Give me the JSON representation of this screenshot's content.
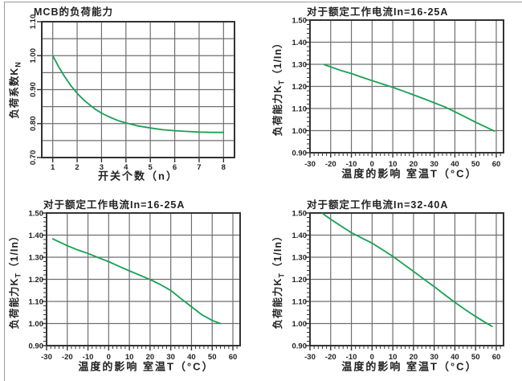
{
  "page": {
    "background": "#ffffff",
    "description_language": "zh-CN"
  },
  "colors": {
    "curve": "#17a154",
    "grid": "#6f6f6f",
    "frame": "#333333",
    "text": "#222222",
    "page_border": "#9a9a9a"
  },
  "chart_data": [
    {
      "id": "mcb-load-capacity",
      "type": "line",
      "title": "MCB的负荷能力",
      "xlabel": "开关个数（n）",
      "ylabel": "负荷系数K",
      "ylabel_sub": "N",
      "ylabel_suffix": "",
      "legend": "none",
      "grid": "on",
      "xlim": [
        0.55,
        8.45
      ],
      "ylim": [
        0.7,
        1.1
      ],
      "x_ticks": [
        1,
        2,
        3,
        4,
        5,
        6,
        7,
        8
      ],
      "x_tick_labels": [
        "1",
        "2",
        "3",
        "4",
        "5",
        "6",
        "7",
        "8"
      ],
      "y_ticks": [
        0.7,
        0.8,
        0.9,
        1.0,
        1.1
      ],
      "y_tick_labels": [
        "0.70",
        "0.80",
        "0.90",
        "1.00",
        "1.10"
      ],
      "y_grid": [
        0.7,
        0.75,
        0.8,
        0.85,
        0.9,
        0.95,
        1.0,
        1.05,
        1.1
      ],
      "x_grid": [
        1,
        2,
        3,
        4,
        5,
        6,
        7,
        8
      ],
      "y_tick_rotated": true,
      "points": [
        [
          1,
          1.0
        ],
        [
          1.25,
          0.966
        ],
        [
          1.5,
          0.937
        ],
        [
          1.75,
          0.911
        ],
        [
          2,
          0.889
        ],
        [
          2.25,
          0.871
        ],
        [
          2.5,
          0.856
        ],
        [
          2.75,
          0.842
        ],
        [
          3,
          0.831
        ],
        [
          3.25,
          0.822
        ],
        [
          3.5,
          0.814
        ],
        [
          3.75,
          0.807
        ],
        [
          4,
          0.802
        ],
        [
          4.5,
          0.793
        ],
        [
          5,
          0.787
        ],
        [
          5.5,
          0.782
        ],
        [
          6,
          0.779
        ],
        [
          6.5,
          0.777
        ],
        [
          7,
          0.775
        ],
        [
          7.5,
          0.774
        ],
        [
          8,
          0.774
        ]
      ]
    },
    {
      "id": "temp-derating-16-25A-top",
      "type": "line",
      "title": "对于额定工作电流In=16-25A",
      "xlabel": "温度的影响 室温T（°C）",
      "ylabel": "负荷能力K",
      "ylabel_sub": "T",
      "ylabel_suffix": "（1/In）",
      "legend": "none",
      "grid": "on",
      "xlim": [
        -30,
        63.5
      ],
      "ylim": [
        0.9,
        1.5
      ],
      "x_ticks": [
        -30,
        -20,
        -10,
        0,
        10,
        20,
        30,
        40,
        50,
        60
      ],
      "x_tick_labels": [
        "-30",
        "-20",
        "-10",
        "0",
        "10",
        "20",
        "30",
        "40",
        "50",
        "60"
      ],
      "y_ticks": [
        0.9,
        1.0,
        1.1,
        1.2,
        1.3,
        1.4,
        1.5
      ],
      "y_tick_labels": [
        "0.90",
        "1.00",
        "1.10",
        "1.20",
        "1.30",
        "1.40",
        "1.50"
      ],
      "y_grid": [
        0.9,
        1.0,
        1.1,
        1.2,
        1.3,
        1.4,
        1.5
      ],
      "x_grid": [
        -30,
        -20,
        -10,
        0,
        10,
        20,
        30,
        40,
        50,
        60
      ],
      "x_minor_step": 2,
      "y_minor_step": 0.02,
      "y_tick_rotated": false,
      "points": [
        [
          -23,
          1.298
        ],
        [
          -15,
          1.272
        ],
        [
          -10,
          1.258
        ],
        [
          -5,
          1.242
        ],
        [
          0,
          1.226
        ],
        [
          5,
          1.211
        ],
        [
          10,
          1.196
        ],
        [
          15,
          1.179
        ],
        [
          20,
          1.162
        ],
        [
          25,
          1.144
        ],
        [
          30,
          1.126
        ],
        [
          35,
          1.108
        ],
        [
          40,
          1.085
        ],
        [
          45,
          1.062
        ],
        [
          50,
          1.038
        ],
        [
          55,
          1.016
        ],
        [
          59,
          0.998
        ]
      ]
    },
    {
      "id": "temp-derating-16-25A-bottom",
      "type": "line",
      "title": "对于额定工作电流In=16-25A",
      "xlabel": "温度的影响 室温T（°C）",
      "ylabel": "负荷能力K",
      "ylabel_sub": "T",
      "ylabel_suffix": "（1/In）",
      "legend": "none",
      "grid": "on",
      "xlim": [
        -30,
        63.5
      ],
      "ylim": [
        0.9,
        1.5
      ],
      "x_ticks": [
        -30,
        -20,
        -10,
        0,
        10,
        20,
        30,
        40,
        50,
        60
      ],
      "x_tick_labels": [
        "-30",
        "-20",
        "-10",
        "0",
        "10",
        "20",
        "30",
        "40",
        "50",
        "60"
      ],
      "y_ticks": [
        0.9,
        1.0,
        1.1,
        1.2,
        1.3,
        1.4,
        1.5
      ],
      "y_tick_labels": [
        "0.90",
        "1.00",
        "1.10",
        "1.20",
        "1.30",
        "1.40",
        "1.50"
      ],
      "y_grid": [
        0.9,
        1.0,
        1.1,
        1.2,
        1.3,
        1.4,
        1.5
      ],
      "x_grid": [
        -30,
        -20,
        -10,
        0,
        10,
        20,
        30,
        40,
        50,
        60
      ],
      "x_minor_step": 2,
      "y_minor_step": 0.02,
      "y_tick_rotated": false,
      "points": [
        [
          -27,
          1.383
        ],
        [
          -20,
          1.352
        ],
        [
          -15,
          1.333
        ],
        [
          -10,
          1.317
        ],
        [
          -5,
          1.298
        ],
        [
          0,
          1.28
        ],
        [
          5,
          1.259
        ],
        [
          10,
          1.238
        ],
        [
          15,
          1.219
        ],
        [
          20,
          1.199
        ],
        [
          25,
          1.176
        ],
        [
          30,
          1.15
        ],
        [
          35,
          1.112
        ],
        [
          40,
          1.076
        ],
        [
          45,
          1.04
        ],
        [
          50,
          1.014
        ],
        [
          54,
          1.0
        ]
      ]
    },
    {
      "id": "temp-derating-32-40A",
      "type": "line",
      "title": "对于额定工作电流In=32-40A",
      "xlabel": "温度的影响 室温T（°C）",
      "ylabel": "负荷能力K",
      "ylabel_sub": "T",
      "ylabel_suffix": "（1/In）",
      "legend": "none",
      "grid": "on",
      "xlim": [
        -30,
        63.5
      ],
      "ylim": [
        0.9,
        1.5
      ],
      "x_ticks": [
        -30,
        -20,
        -10,
        0,
        10,
        20,
        30,
        40,
        50,
        60
      ],
      "x_tick_labels": [
        "-30",
        "-20",
        "-10",
        "0",
        "10",
        "20",
        "30",
        "40",
        "50",
        "60"
      ],
      "y_ticks": [
        0.9,
        1.0,
        1.1,
        1.2,
        1.3,
        1.4,
        1.5
      ],
      "y_tick_labels": [
        "0.90",
        "1.00",
        "1.10",
        "1.20",
        "1.30",
        "1.40",
        "1.50"
      ],
      "y_grid": [
        0.9,
        1.0,
        1.1,
        1.2,
        1.3,
        1.4,
        1.5
      ],
      "x_grid": [
        -30,
        -20,
        -10,
        0,
        10,
        20,
        30,
        40,
        50,
        60
      ],
      "x_minor_step": 2,
      "y_minor_step": 0.02,
      "y_tick_rotated": false,
      "points": [
        [
          -24,
          1.498
        ],
        [
          -20,
          1.472
        ],
        [
          -15,
          1.441
        ],
        [
          -10,
          1.411
        ],
        [
          -5,
          1.387
        ],
        [
          0,
          1.364
        ],
        [
          5,
          1.334
        ],
        [
          10,
          1.304
        ],
        [
          15,
          1.27
        ],
        [
          20,
          1.236
        ],
        [
          25,
          1.201
        ],
        [
          30,
          1.167
        ],
        [
          35,
          1.131
        ],
        [
          40,
          1.096
        ],
        [
          45,
          1.063
        ],
        [
          50,
          1.032
        ],
        [
          55,
          1.003
        ],
        [
          58,
          0.987
        ]
      ]
    }
  ]
}
